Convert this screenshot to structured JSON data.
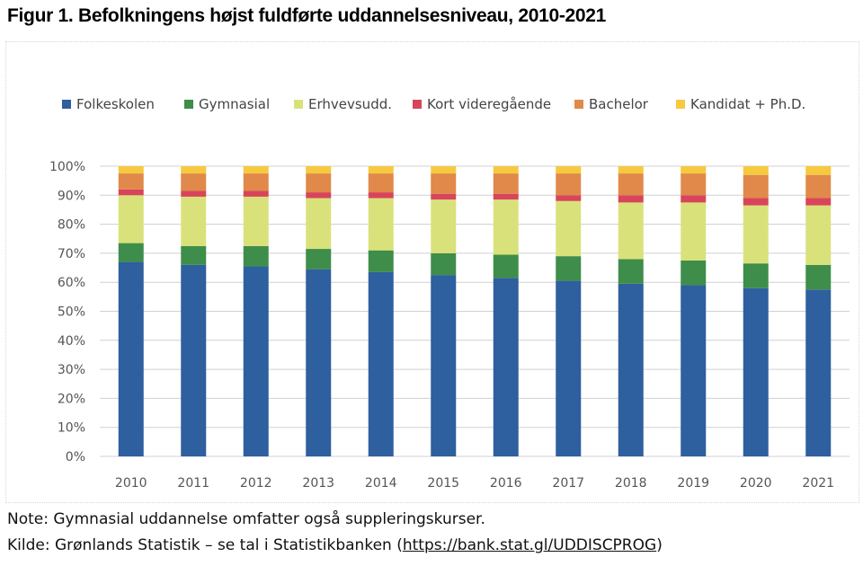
{
  "figure": {
    "title": "Figur 1. Befolkningens højst fuldførte uddannelsesniveau, 2010-2021",
    "note": "Note: Gymnasial uddannelse omfatter også suppleringskurser.",
    "source_prefix": "Kilde: Grønlands Statistik – se tal i Statistikbanken (",
    "source_link": "https://bank.stat.gl/UDDISCPROG",
    "source_suffix": ")"
  },
  "chart_data": {
    "type": "bar",
    "stacked": true,
    "percent_stacked": true,
    "categories": [
      "2010",
      "2011",
      "2012",
      "2013",
      "2014",
      "2015",
      "2016",
      "2017",
      "2018",
      "2019",
      "2020",
      "2021"
    ],
    "series": [
      {
        "name": "Folkeskolen",
        "color": "#2e5f9e",
        "values": [
          67,
          66,
          65.5,
          64.5,
          63.5,
          62.5,
          61.5,
          60.5,
          59.5,
          59,
          58,
          57.5
        ]
      },
      {
        "name": "Gymnasial",
        "color": "#3f8d4a",
        "values": [
          6.5,
          6.5,
          7,
          7,
          7.5,
          7.5,
          8,
          8.5,
          8.5,
          8.5,
          8.5,
          8.5
        ]
      },
      {
        "name": "Erhvevsudd.",
        "color": "#d9e27a",
        "values": [
          16.5,
          17,
          17,
          17.5,
          18,
          18.5,
          19,
          19,
          19.5,
          20,
          20,
          20.5
        ]
      },
      {
        "name": "Kort videregående",
        "color": "#d8455a",
        "values": [
          2,
          2,
          2,
          2,
          2,
          2,
          2,
          2,
          2.5,
          2.5,
          2.5,
          2.5
        ]
      },
      {
        "name": "Bachelor",
        "color": "#e0894a",
        "values": [
          5.5,
          6,
          6,
          6.5,
          6.5,
          7,
          7,
          7.5,
          7.5,
          7.5,
          8,
          8
        ]
      },
      {
        "name": "Kandidat + Ph.D.",
        "color": "#f6c93f",
        "values": [
          2.5,
          2.5,
          2.5,
          2.5,
          2.5,
          2.5,
          2.5,
          2.5,
          2.5,
          2.5,
          3,
          3
        ]
      }
    ],
    "y_ticks": [
      "0%",
      "10%",
      "20%",
      "30%",
      "40%",
      "50%",
      "60%",
      "70%",
      "80%",
      "90%",
      "100%"
    ],
    "ylim": [
      0,
      100
    ],
    "grid": true,
    "legend_position": "top"
  }
}
